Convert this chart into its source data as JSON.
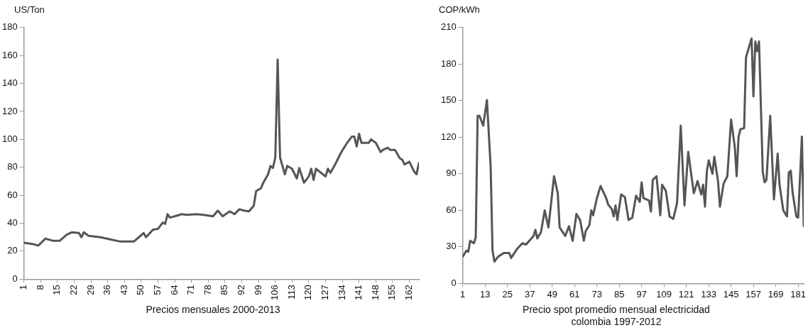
{
  "chart_data": [
    {
      "type": "line",
      "xlabel": "Precios mensuales 2000-2013",
      "ylabel": "US/Ton",
      "color": "#555555",
      "x": [
        1,
        5,
        7,
        10,
        13,
        16,
        19,
        21,
        24,
        25,
        26,
        28,
        33,
        37,
        41,
        47,
        51,
        52,
        55,
        57,
        59,
        60,
        61,
        62,
        66,
        67,
        69,
        73,
        76,
        80,
        82,
        84,
        87,
        89,
        91,
        93,
        95,
        97,
        98,
        100,
        101,
        103,
        104,
        105,
        106,
        107,
        108,
        110,
        111,
        113,
        115,
        116,
        118,
        120,
        121,
        122,
        123,
        127,
        128,
        129,
        131,
        133,
        134,
        136,
        138,
        139,
        140,
        141,
        142,
        145,
        146,
        148,
        150,
        151,
        153,
        154,
        156,
        158,
        159,
        160,
        162,
        164,
        165,
        166
      ],
      "values": [
        26,
        25,
        24,
        29,
        27.5,
        27.5,
        32,
        33.5,
        33,
        30,
        33.5,
        31,
        30,
        28.5,
        27,
        27,
        33,
        30,
        35.5,
        36,
        40.5,
        39.5,
        46.5,
        44,
        46,
        46.5,
        46,
        46.5,
        46,
        45,
        49,
        45,
        48.5,
        46.5,
        50,
        49,
        48.5,
        52.5,
        63,
        65,
        69,
        75,
        81,
        79.5,
        87,
        157,
        87,
        75,
        81,
        79,
        72,
        79.5,
        69,
        73.5,
        79,
        71,
        79,
        73.5,
        79,
        76,
        82,
        89,
        92,
        97.5,
        102,
        102,
        95,
        104,
        97.5,
        97.5,
        100,
        97.5,
        91,
        92.5,
        94,
        92.5,
        92.5,
        86.5,
        85.5,
        82,
        84,
        77,
        75,
        83
      ],
      "xlim": [
        1,
        166
      ],
      "xticks": [
        1,
        8,
        15,
        22,
        29,
        36,
        43,
        50,
        57,
        64,
        71,
        78,
        85,
        92,
        99,
        106,
        113,
        120,
        127,
        134,
        141,
        148,
        155,
        162
      ],
      "ylim": [
        0,
        180
      ],
      "yticks": [
        0,
        20,
        40,
        60,
        80,
        100,
        120,
        140,
        160,
        180
      ]
    },
    {
      "type": "line",
      "xlabel": "Precio spot promedio mensual electricidad colombia 1997-2012",
      "ylabel": "COP/kWh",
      "color": "#555555",
      "x": [
        1,
        3,
        4,
        5,
        7,
        8,
        9,
        10,
        12,
        14,
        16,
        17,
        18,
        20,
        23,
        26,
        27,
        30,
        33,
        35,
        39,
        40,
        41,
        43,
        45,
        47,
        50,
        52,
        53,
        56,
        58,
        60,
        62,
        64,
        66,
        67,
        69,
        70,
        71,
        73,
        75,
        78,
        79,
        81,
        82,
        83,
        84,
        86,
        88,
        90,
        92,
        94,
        96,
        97,
        98,
        101,
        102,
        103,
        105,
        107,
        108,
        110,
        112,
        114,
        116,
        118,
        120,
        122,
        125,
        127,
        129,
        130,
        131,
        132,
        133,
        135,
        136,
        138,
        139,
        141,
        143,
        145,
        147,
        148,
        149,
        150,
        152,
        153,
        156,
        157,
        158,
        159,
        160,
        162,
        163,
        164,
        166,
        168,
        170,
        171,
        173,
        175,
        176,
        177,
        178,
        180,
        181,
        183,
        184
      ],
      "values": [
        22,
        27,
        26,
        35,
        33,
        38,
        137.5,
        137.5,
        129.5,
        150.5,
        95.5,
        27,
        18,
        22,
        25,
        25,
        21,
        28,
        33,
        32,
        39,
        44,
        37,
        42,
        60,
        46,
        88,
        74,
        46,
        39,
        47,
        35,
        57,
        52,
        35,
        43,
        48,
        60,
        56,
        70,
        80,
        70,
        65,
        61,
        55,
        64,
        52,
        73,
        71,
        52,
        54,
        72,
        67,
        83,
        70,
        68,
        59,
        85,
        88,
        56,
        81,
        76,
        55,
        53,
        66,
        129.5,
        64,
        108,
        74,
        84,
        73,
        81,
        63,
        92,
        101,
        90,
        104,
        84,
        63,
        82,
        88,
        134.5,
        112,
        88,
        120,
        126.5,
        127.5,
        185.5,
        201,
        153.5,
        198.5,
        190.5,
        198.5,
        91.5,
        83,
        85,
        137.5,
        69,
        106.5,
        81,
        60,
        55,
        91,
        92.5,
        75,
        55,
        54,
        120.5,
        47
      ],
      "xlim": [
        1,
        184
      ],
      "xticks": [
        1,
        13,
        25,
        37,
        49,
        61,
        73,
        85,
        97,
        109,
        121,
        133,
        145,
        157,
        169,
        181
      ],
      "ylim": [
        0,
        210
      ],
      "yticks": [
        0,
        30,
        60,
        90,
        120,
        150,
        180,
        210
      ]
    }
  ]
}
